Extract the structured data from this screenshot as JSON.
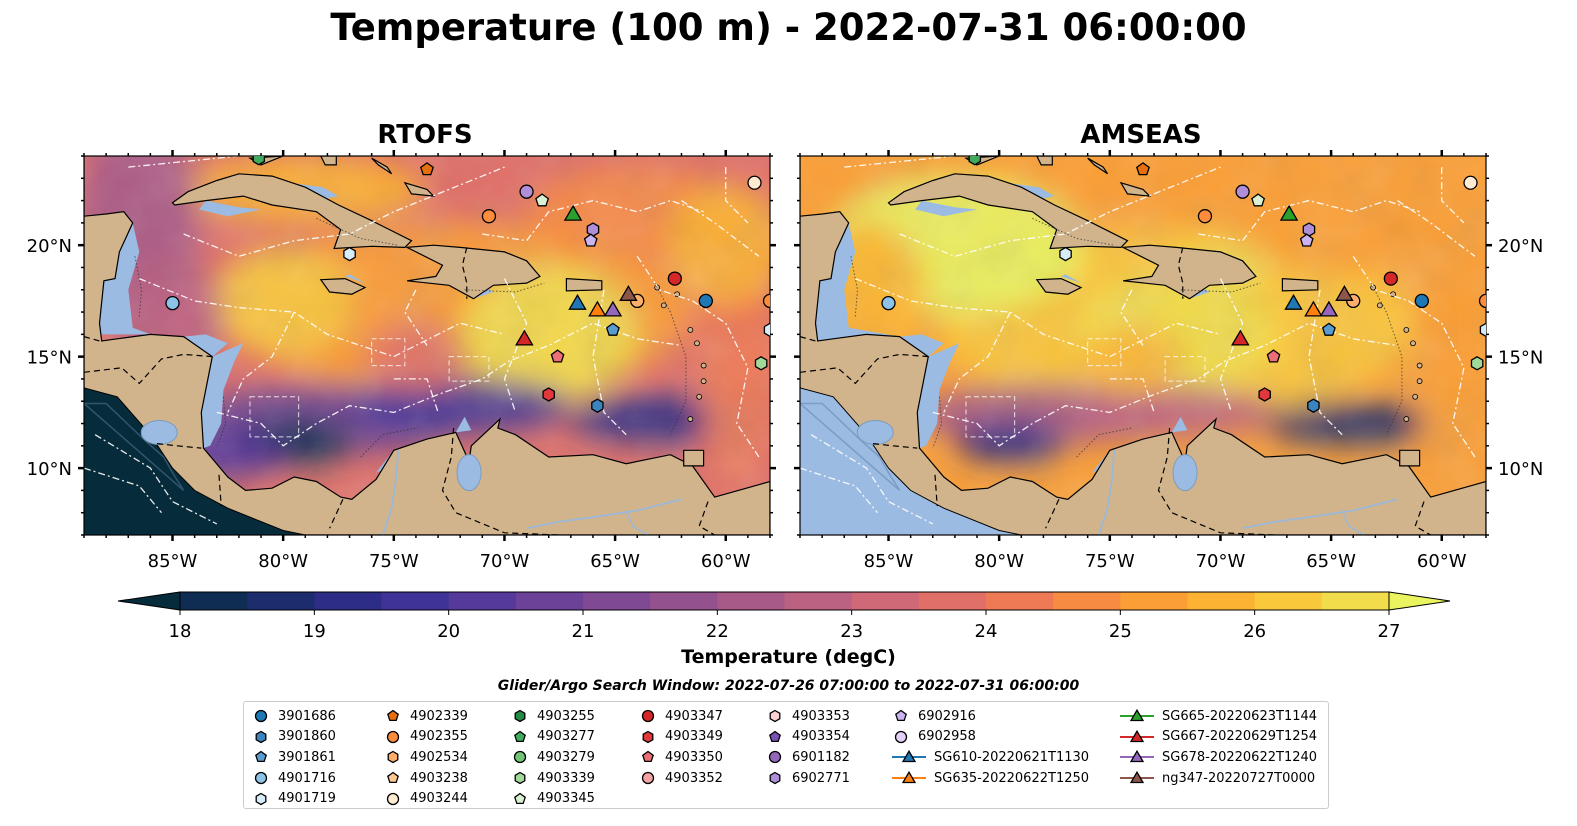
{
  "title": "Temperature (100 m) - 2022-07-31 06:00:00",
  "panels": [
    {
      "title": "RTOFS",
      "variant": "rtofs"
    },
    {
      "title": "AMSEAS",
      "variant": "amseas"
    }
  ],
  "map": {
    "lon_range": [
      -89,
      -58
    ],
    "lat_range": [
      7,
      24
    ],
    "lon_ticks": [
      "85°W",
      "80°W",
      "75°W",
      "70°W",
      "65°W",
      "60°W"
    ],
    "lat_ticks": [
      "20°N",
      "15°N",
      "10°N"
    ],
    "ocean_color": "#9bbbe2",
    "land_color": "#d2b48c"
  },
  "colorbar": {
    "label": "Temperature (degC)",
    "min": 18,
    "max": 27,
    "ticks": [
      "18",
      "19",
      "20",
      "21",
      "22",
      "23",
      "24",
      "25",
      "26",
      "27"
    ],
    "colors": [
      "#062b3a",
      "#0f2d52",
      "#1c2c6c",
      "#2d2c86",
      "#3f3397",
      "#55399b",
      "#6b4298",
      "#7f4a93",
      "#93528e",
      "#a75a88",
      "#bb6181",
      "#cf6877",
      "#e06f68",
      "#ee7a55",
      "#f78b42",
      "#fb9e35",
      "#fcb232",
      "#f9c83b",
      "#f1dd4b",
      "#e9f45e"
    ]
  },
  "search_window": "Glider/Argo Search Window: 2022-07-26 07:00:00 to 2022-07-31 06:00:00",
  "legend": [
    [
      {
        "label": "3901686",
        "marker": "circle",
        "color": "#1f77b4"
      },
      {
        "label": "3901860",
        "marker": "hexagon",
        "color": "#3b84bf"
      },
      {
        "label": "3901861",
        "marker": "pentagon",
        "color": "#5a9bd0"
      },
      {
        "label": "4901716",
        "marker": "circle",
        "color": "#8cc3e6"
      },
      {
        "label": "4901719",
        "marker": "hexagon",
        "color": "#d6ecf8"
      }
    ],
    [
      {
        "label": "4902339",
        "marker": "pentagon",
        "color": "#e6700e"
      },
      {
        "label": "4902355",
        "marker": "circle",
        "color": "#fd8d3c"
      },
      {
        "label": "4902534",
        "marker": "hexagon",
        "color": "#fdae6b"
      },
      {
        "label": "4903238",
        "marker": "pentagon",
        "color": "#fdc793"
      },
      {
        "label": "4903244",
        "marker": "circle",
        "color": "#feebd2"
      }
    ],
    [
      {
        "label": "4903255",
        "marker": "hexagon",
        "color": "#238b45"
      },
      {
        "label": "4903277",
        "marker": "pentagon",
        "color": "#41ab5d"
      },
      {
        "label": "4903279",
        "marker": "circle",
        "color": "#74c476"
      },
      {
        "label": "4903339",
        "marker": "hexagon",
        "color": "#a1d99b"
      },
      {
        "label": "4903345",
        "marker": "pentagon",
        "color": "#d9f0d3"
      }
    ],
    [
      {
        "label": "4903347",
        "marker": "circle",
        "color": "#d62728"
      },
      {
        "label": "4903349",
        "marker": "hexagon",
        "color": "#e0383b"
      },
      {
        "label": "4903350",
        "marker": "pentagon",
        "color": "#ec6e77"
      },
      {
        "label": "4903352",
        "marker": "circle",
        "color": "#f4a3a5"
      }
    ],
    [
      {
        "label": "4903353",
        "marker": "hexagon",
        "color": "#fbd0d3"
      },
      {
        "label": "4903354",
        "marker": "pentagon",
        "color": "#7a52b3"
      },
      {
        "label": "6901182",
        "marker": "circle",
        "color": "#9467bd"
      },
      {
        "label": "6902771",
        "marker": "hexagon",
        "color": "#b08fd8"
      }
    ],
    [
      {
        "label": "6902916",
        "marker": "pentagon",
        "color": "#cbb3ef"
      },
      {
        "label": "6902958",
        "marker": "circle",
        "color": "#e4d0f7"
      },
      {
        "label": "SG610-20220621T1130",
        "marker": "triangle",
        "color": "#1f77b4",
        "line": true
      },
      {
        "label": "SG635-20220622T1250",
        "marker": "triangle",
        "color": "#ff7f0e",
        "line": true
      }
    ],
    [
      {
        "label": "SG665-20220623T1144",
        "marker": "triangle",
        "color": "#2ca02c",
        "line": true
      },
      {
        "label": "SG667-20220629T1254",
        "marker": "triangle",
        "color": "#d62728",
        "line": true
      },
      {
        "label": "SG678-20220622T1240",
        "marker": "triangle",
        "color": "#9467bd",
        "line": true
      },
      {
        "label": "ng347-20220727T0000",
        "marker": "triangle",
        "color": "#8c564b",
        "line": true
      }
    ]
  ],
  "floats": [
    {
      "lon": -81.1,
      "lat": 23.9,
      "marker": "hexagon",
      "color": "#41ab5d"
    },
    {
      "lon": -73.5,
      "lat": 23.4,
      "marker": "pentagon",
      "color": "#e6700e"
    },
    {
      "lon": -69.0,
      "lat": 22.4,
      "marker": "circle",
      "color": "#b08fd8"
    },
    {
      "lon": -68.3,
      "lat": 22.0,
      "marker": "pentagon",
      "color": "#d9f0d3"
    },
    {
      "lon": -70.7,
      "lat": 21.3,
      "marker": "circle",
      "color": "#fd8d3c"
    },
    {
      "lon": -66.0,
      "lat": 20.7,
      "marker": "hexagon",
      "color": "#b08fd8"
    },
    {
      "lon": -66.1,
      "lat": 20.2,
      "marker": "pentagon",
      "color": "#cbb3ef"
    },
    {
      "lon": -77.0,
      "lat": 19.6,
      "marker": "hexagon",
      "color": "#d6ecf8"
    },
    {
      "lon": -62.3,
      "lat": 18.5,
      "marker": "circle",
      "color": "#d62728"
    },
    {
      "lon": -60.9,
      "lat": 17.5,
      "marker": "circle",
      "color": "#1f77b4"
    },
    {
      "lon": -85.0,
      "lat": 17.4,
      "marker": "circle",
      "color": "#8cc3e6"
    },
    {
      "lon": -64.0,
      "lat": 17.5,
      "marker": "circle",
      "color": "#fdae6b"
    },
    {
      "lon": -65.1,
      "lat": 16.2,
      "marker": "pentagon",
      "color": "#5a9bd0"
    },
    {
      "lon": -67.6,
      "lat": 15.0,
      "marker": "pentagon",
      "color": "#ec6e77"
    },
    {
      "lon": -68.0,
      "lat": 13.3,
      "marker": "hexagon",
      "color": "#e0383b"
    },
    {
      "lon": -65.8,
      "lat": 12.8,
      "marker": "hexagon",
      "color": "#3b84bf"
    },
    {
      "lon": -58.4,
      "lat": 14.7,
      "marker": "hexagon",
      "color": "#a1d99b"
    },
    {
      "lon": -58.0,
      "lat": 16.2,
      "marker": "hexagon",
      "color": "#d6ecf8"
    },
    {
      "lon": -58.0,
      "lat": 17.5,
      "marker": "circle",
      "color": "#fd8d3c"
    },
    {
      "lon": -58.7,
      "lat": 22.8,
      "marker": "circle",
      "color": "#feebd2"
    }
  ],
  "gliders": [
    {
      "lon": -66.9,
      "lat": 21.4,
      "color": "#2ca02c"
    },
    {
      "lon": -66.7,
      "lat": 17.4,
      "color": "#1f77b4"
    },
    {
      "lon": -65.8,
      "lat": 17.1,
      "color": "#ff7f0e"
    },
    {
      "lon": -65.1,
      "lat": 17.1,
      "color": "#9467bd"
    },
    {
      "lon": -64.4,
      "lat": 17.8,
      "color": "#8c564b"
    },
    {
      "lon": -69.1,
      "lat": 15.8,
      "color": "#d62728"
    }
  ]
}
